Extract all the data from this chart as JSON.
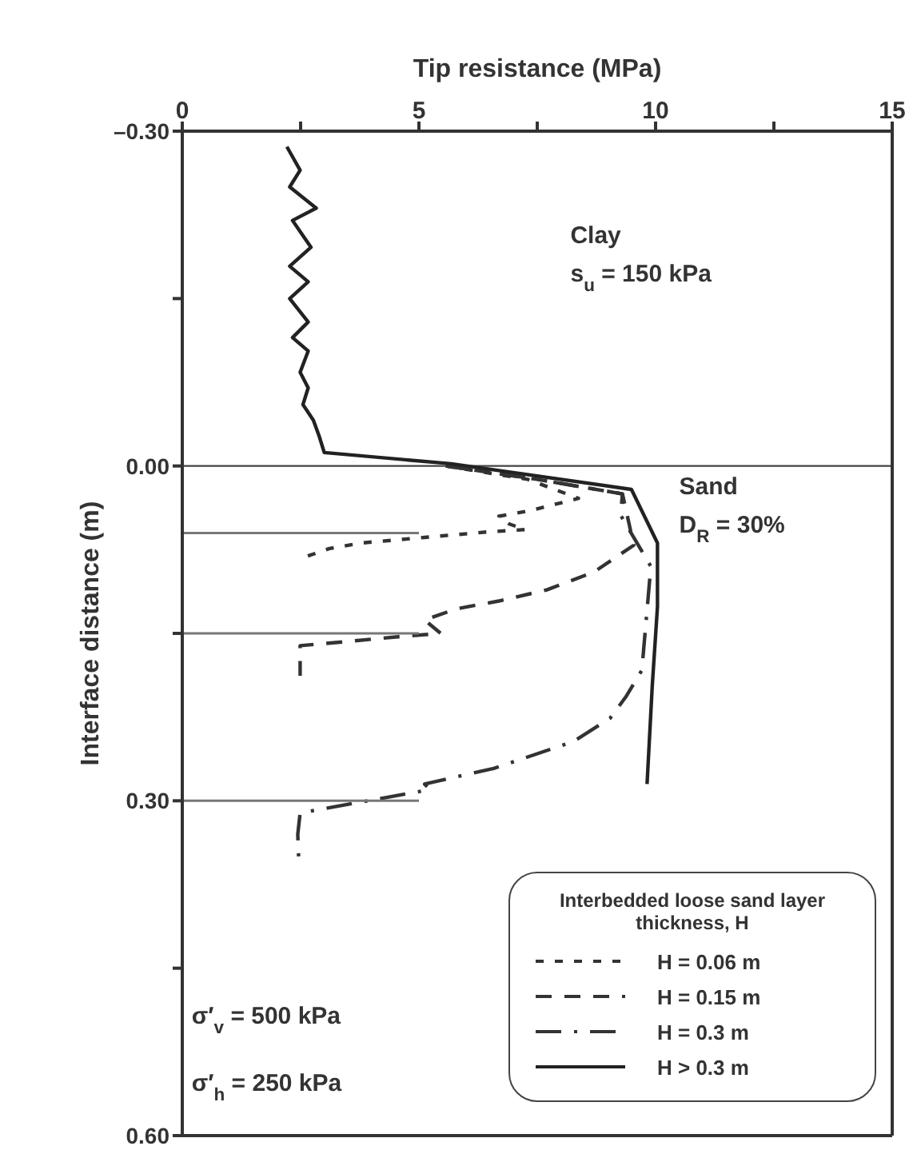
{
  "chart_data": {
    "type": "line",
    "xlabel": "Tip resistance (MPa)",
    "ylabel": "Interface distance (m)",
    "legend_title": "Interbedded loose sand layer thickness, H",
    "legend": "bottom right",
    "marker": "none",
    "xlim": [
      0,
      15
    ],
    "xticks": [
      0,
      {
        "value": 2.5,
        "label": null
      },
      5,
      {
        "value": 7.5,
        "label": null
      },
      10,
      {
        "value": 12.5,
        "label": null
      },
      15
    ],
    "ylim": [
      0.6,
      -0.3
    ],
    "yticks": [
      {
        "value": -0.3,
        "label": "–0.30"
      },
      {
        "value": -0.15,
        "label": null
      },
      {
        "value": 0,
        "label": "0.00"
      },
      {
        "value": 0.15,
        "label": null
      },
      {
        "value": 0.3,
        "label": "0.30"
      },
      {
        "value": 0.45,
        "label": null
      },
      {
        "value": 0.6,
        "label": "0.60"
      }
    ],
    "ref_lines": [
      {
        "axis": "y",
        "value": 0,
        "label": null,
        "color": "#444444"
      }
    ],
    "annotations": [
      "Clay",
      "s$_{u}$ = 150 kPa",
      "Sand",
      "D$_{R}$ = 30%",
      "σ′$_{v}$ = 500 kPa",
      "σ′$_{h}$ = 250 kPa"
    ],
    "series": [
      {
        "name": "H = 0.06 m",
        "color": "#333333",
        "line_style": "dotted",
        "x": [
          5.57,
          7.3,
          8.37,
          7.36,
          6.69,
          6.91,
          7.25,
          6.47,
          5.12,
          3.78,
          3.11,
          2.49
        ],
        "values": [
          0.0,
          0.012,
          0.029,
          0.04,
          0.045,
          0.052,
          0.057,
          0.059,
          0.064,
          0.069,
          0.074,
          0.083
        ]
      },
      {
        "name": "H = 0.15 m",
        "color": "#333333",
        "line_style": "dashed",
        "x": [
          5.57,
          7.5,
          9.3,
          9.54,
          8.7,
          7.7,
          6.69,
          5.79,
          5.12,
          5.46,
          4.56,
          3.56,
          2.49,
          2.49
        ],
        "values": [
          0.0,
          0.012,
          0.025,
          0.071,
          0.095,
          0.111,
          0.121,
          0.128,
          0.138,
          0.15,
          0.153,
          0.157,
          0.161,
          0.188
        ]
      },
      {
        "name": "H = 0.3 m",
        "color": "#333333",
        "line_style": "dashdot",
        "x": [
          5.57,
          7.5,
          9.3,
          9.26,
          9.9,
          9.71,
          9.37,
          9.04,
          8.26,
          6.58,
          5.12,
          5.23,
          3.0,
          2.49,
          2.44,
          2.46
        ],
        "values": [
          0.0,
          0.012,
          0.025,
          0.044,
          0.09,
          0.183,
          0.207,
          0.226,
          0.247,
          0.271,
          0.285,
          0.29,
          0.307,
          0.311,
          0.33,
          0.352
        ]
      },
      {
        "name": "H > 0.3 m",
        "color": "#222222",
        "line_style": "solid",
        "x": [
          2.21,
          2.49,
          2.27,
          2.83,
          2.33,
          2.72,
          2.27,
          2.66,
          2.27,
          2.66,
          2.33,
          2.66,
          2.49,
          2.66,
          2.55,
          2.77,
          2.89,
          3.0,
          5.68,
          9.49,
          10.04,
          10.04,
          9.93,
          9.82
        ],
        "values": [
          -0.286,
          -0.265,
          -0.25,
          -0.231,
          -0.22,
          -0.196,
          -0.179,
          -0.165,
          -0.15,
          -0.129,
          -0.115,
          -0.103,
          -0.084,
          -0.07,
          -0.055,
          -0.041,
          -0.027,
          -0.012,
          -0.002,
          0.021,
          0.069,
          0.126,
          0.197,
          0.285
        ]
      },
      {
        "color": "#777777",
        "line_style": "solid",
        "x": [
          0,
          5
        ],
        "values": [
          0.06,
          0.06
        ]
      },
      {
        "color": "#777777",
        "line_style": "solid",
        "x": [
          0,
          5
        ],
        "values": [
          0.15,
          0.15
        ]
      },
      {
        "color": "#777777",
        "line_style": "solid",
        "x": [
          0,
          5
        ],
        "values": [
          0.3,
          0.3
        ]
      }
    ]
  }
}
